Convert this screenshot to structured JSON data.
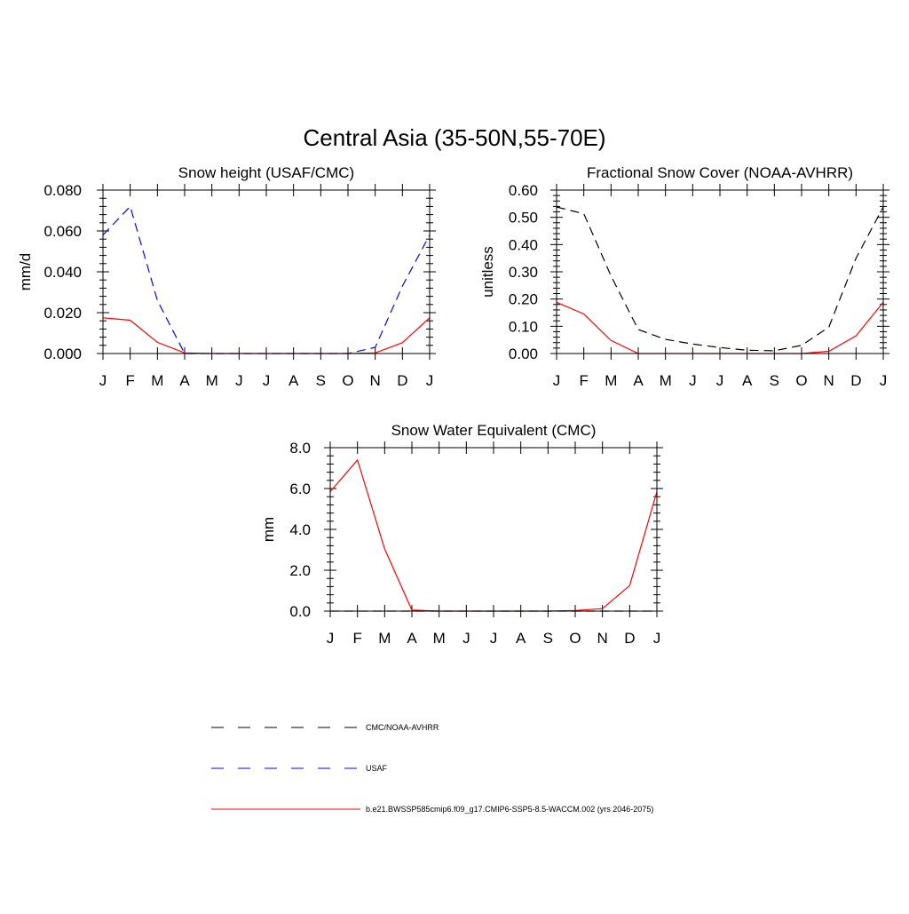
{
  "figure": {
    "title": "Central Asia (35-50N,55-70E)"
  },
  "months": [
    "J",
    "F",
    "M",
    "A",
    "M",
    "J",
    "J",
    "A",
    "S",
    "O",
    "N",
    "D",
    "J"
  ],
  "chart_data": [
    {
      "type": "line",
      "title": "Snow height (USAF/CMC)",
      "xlabel": "",
      "ylabel": "mm/d",
      "ylim": [
        0,
        0.08
      ],
      "yticks": [
        "0.000",
        "0.020",
        "0.040",
        "0.060",
        "0.080"
      ],
      "categories": [
        "J",
        "F",
        "M",
        "A",
        "M",
        "J",
        "J",
        "A",
        "S",
        "O",
        "N",
        "D",
        "J"
      ],
      "series": [
        {
          "name": "USAF",
          "color": "#0000ff",
          "dash": "dashed",
          "values": [
            0.058,
            0.072,
            0.026,
            0.0,
            0.0,
            0.0,
            0.0,
            0.0,
            0.0,
            0.0,
            0.003,
            0.033,
            0.058
          ]
        },
        {
          "name": "b.e21.BWSSP585cmip6.f09_g17.CMIP6-SSP5-8.5-WACCM.002 (yrs 2046-2075)",
          "color": "#ff0000",
          "dash": "solid",
          "values": [
            0.0175,
            0.0163,
            0.0055,
            0.0003,
            0.0,
            0.0,
            0.0,
            0.0,
            0.0,
            0.0,
            0.0003,
            0.0053,
            0.0175
          ]
        }
      ]
    },
    {
      "type": "line",
      "title": "Fractional Snow Cover (NOAA-AVHRR)",
      "xlabel": "",
      "ylabel": "unitless",
      "ylim": [
        0,
        0.6
      ],
      "yticks": [
        "0.00",
        "0.10",
        "0.20",
        "0.30",
        "0.40",
        "0.50",
        "0.60"
      ],
      "categories": [
        "J",
        "F",
        "M",
        "A",
        "M",
        "J",
        "J",
        "A",
        "S",
        "O",
        "N",
        "D",
        "J"
      ],
      "series": [
        {
          "name": "CMC/NOAA-AVHRR",
          "color": "#000000",
          "dash": "dashed",
          "values": [
            0.538,
            0.513,
            0.285,
            0.088,
            0.052,
            0.035,
            0.022,
            0.012,
            0.01,
            0.03,
            0.097,
            0.35,
            0.538
          ]
        },
        {
          "name": "b.e21.BWSSP585cmip6.f09_g17.CMIP6-SSP5-8.5-WACCM.002 (yrs 2046-2075)",
          "color": "#ff0000",
          "dash": "solid",
          "values": [
            0.188,
            0.145,
            0.048,
            0.0,
            0.0,
            0.0,
            0.0,
            0.0,
            0.0,
            0.0,
            0.008,
            0.065,
            0.188
          ]
        }
      ]
    },
    {
      "type": "line",
      "title": "Snow Water Equivalent (CMC)",
      "xlabel": "",
      "ylabel": "mm",
      "ylim": [
        0,
        8
      ],
      "yticks": [
        "0.0",
        "2.0",
        "4.0",
        "6.0",
        "8.0"
      ],
      "categories": [
        "J",
        "F",
        "M",
        "A",
        "M",
        "J",
        "J",
        "A",
        "S",
        "O",
        "N",
        "D",
        "J"
      ],
      "series": [
        {
          "name": "CMC/NOAA-AVHRR",
          "color": "#000000",
          "dash": "dashed",
          "values": [
            0,
            0,
            0,
            0,
            0,
            0,
            0,
            0,
            0,
            0,
            0,
            0,
            0
          ]
        },
        {
          "name": "b.e21.BWSSP585cmip6.f09_g17.CMIP6-SSP5-8.5-WACCM.002 (yrs 2046-2075)",
          "color": "#ff0000",
          "dash": "solid",
          "values": [
            5.85,
            7.4,
            3.05,
            0.05,
            0.0,
            0.0,
            0.0,
            0.0,
            0.0,
            0.03,
            0.12,
            1.25,
            5.85
          ]
        }
      ]
    }
  ],
  "legend": [
    {
      "label": "CMC/NOAA-AVHRR",
      "color": "#000000",
      "dash": "dashed"
    },
    {
      "label": "USAF",
      "color": "#0000ff",
      "dash": "dashed"
    },
    {
      "label": "b.e21.BWSSP585cmip6.f09_g17.CMIP6-SSP5-8.5-WACCM.002 (yrs 2046-2075)",
      "color": "#ff0000",
      "dash": "solid"
    }
  ]
}
